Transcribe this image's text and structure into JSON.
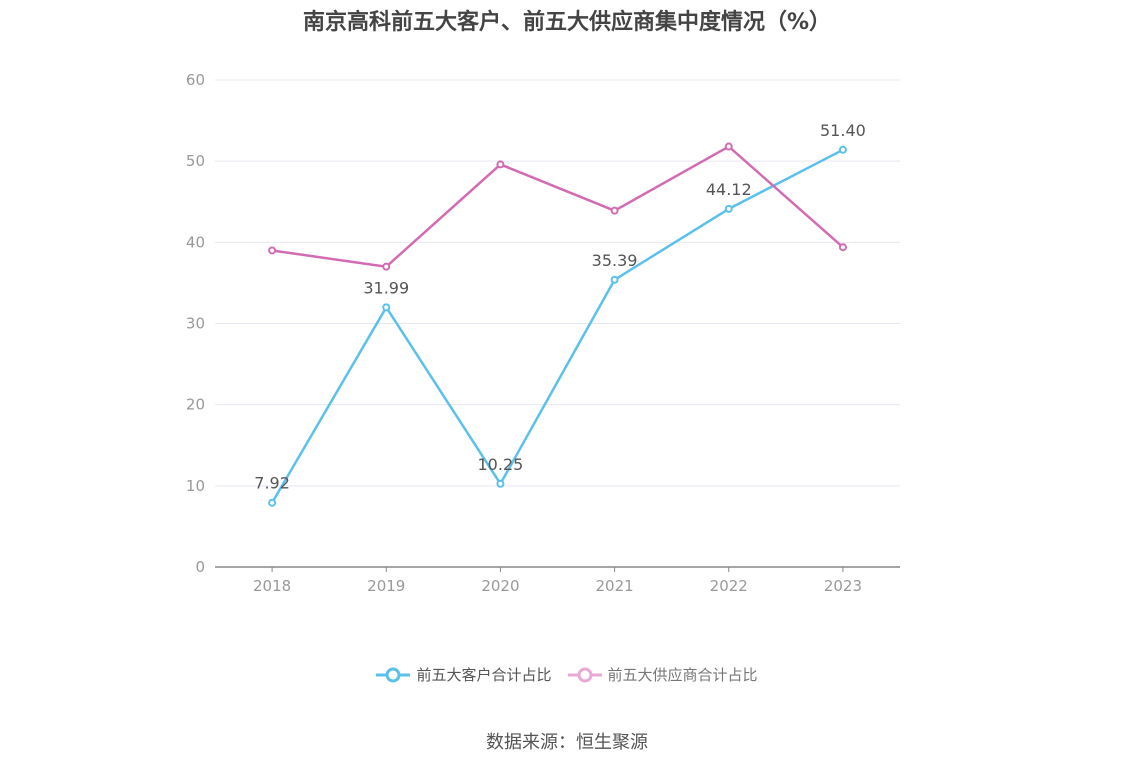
{
  "title": "南京高科前五大客户、前五大供应商集中度情况（%）",
  "source": "数据来源：恒生聚源",
  "chart_data": {
    "type": "line",
    "categories": [
      "2018",
      "2019",
      "2020",
      "2021",
      "2022",
      "2023"
    ],
    "ylim": [
      0,
      60
    ],
    "yticks": [
      0,
      10,
      20,
      30,
      40,
      50,
      60
    ],
    "grid": true,
    "legend_position": "bottom",
    "series": [
      {
        "name": "前五大客户合计占比",
        "color": "#5bc0eb",
        "values": [
          7.92,
          31.99,
          10.25,
          35.39,
          44.12,
          51.4
        ],
        "labels": [
          "7.92",
          "31.99",
          "10.25",
          "35.39",
          "44.12",
          "51.40"
        ],
        "show_labels": true
      },
      {
        "name": "前五大供应商合计占比",
        "color": "#d36bb3",
        "values": [
          39.0,
          37.0,
          49.6,
          43.9,
          51.8,
          39.4
        ],
        "show_labels": false
      }
    ]
  }
}
